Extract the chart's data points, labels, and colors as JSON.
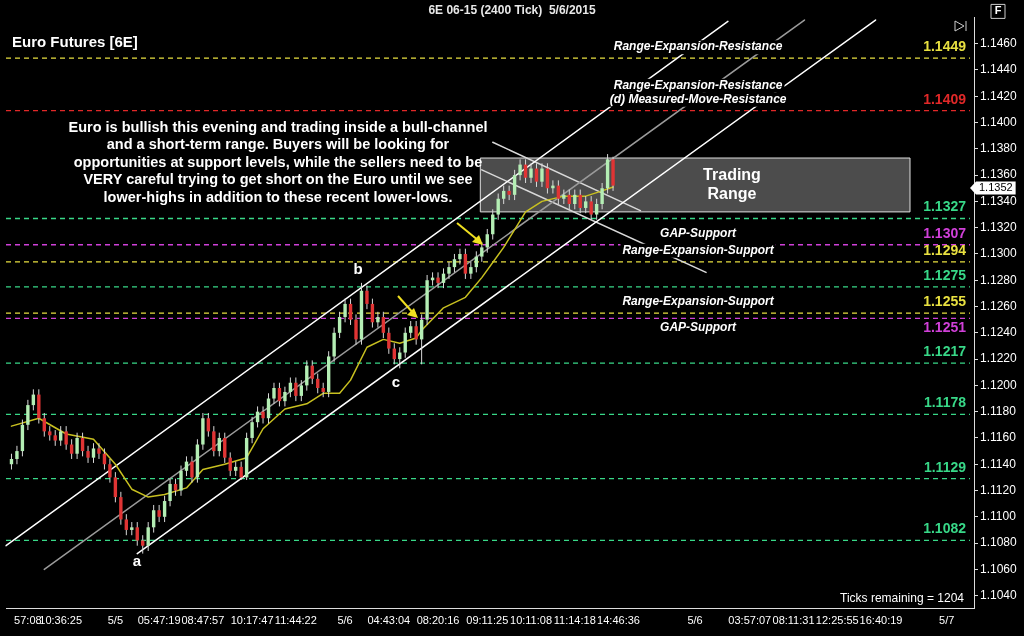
{
  "chart_data": {
    "type": "candlestick",
    "title": "6E 06-15 (2400 Tick)  5/6/2015",
    "subtitle": "Euro Futures [6E]",
    "categories": [
      null,
      null,
      null,
      null,
      "57:08",
      null,
      null,
      null,
      null,
      null,
      "10:36:25",
      null,
      null,
      null,
      null,
      null,
      null,
      null,
      null,
      null,
      "5/5",
      null,
      null,
      null,
      null,
      null,
      null,
      null,
      "05:47:19",
      null,
      null,
      null,
      null,
      null,
      null,
      null,
      "08:47:57",
      null,
      null,
      null,
      null,
      null,
      null,
      null,
      null,
      "10:17:47",
      null,
      null,
      null,
      null,
      null,
      null,
      null,
      "11:44:22",
      null,
      null,
      null,
      null,
      null,
      null,
      null,
      null,
      "5/6",
      null,
      null,
      null,
      null,
      null,
      null,
      null,
      "04:43:04",
      null,
      null,
      null,
      null,
      null,
      null,
      null,
      null,
      "08:20:16",
      null,
      null,
      null,
      null,
      null,
      null,
      null,
      null,
      "09:11:25",
      null,
      null,
      null,
      null,
      null,
      null,
      null,
      "10:11:08",
      null,
      null,
      null,
      null,
      null,
      null,
      null,
      "11:14:18",
      null,
      null,
      null,
      null,
      null,
      null,
      null,
      "14:46:36",
      null,
      null,
      null,
      null,
      null,
      null,
      null,
      null,
      null,
      null,
      null,
      null,
      null,
      "5/6",
      null,
      null,
      null,
      null,
      null,
      null,
      null,
      null,
      null,
      "03:57:07",
      null,
      null,
      null,
      null,
      null,
      null,
      null,
      "08:11:31",
      null,
      null,
      null,
      null,
      null,
      null,
      null,
      "12:25:55",
      null,
      null,
      null,
      null,
      null,
      null,
      null,
      "16:40:19",
      null,
      null,
      null,
      null,
      null,
      null,
      null,
      null,
      null,
      null,
      null,
      "5/7",
      null,
      null,
      null,
      null,
      null
    ],
    "ohlc": [
      null,
      [
        1.114,
        1.1148,
        1.1136,
        1.1144
      ],
      [
        1.1144,
        1.1154,
        1.114,
        1.115
      ],
      [
        1.115,
        1.1174,
        1.1146,
        1.117
      ],
      [
        1.117,
        1.1189,
        1.1166,
        1.1185
      ],
      [
        1.1185,
        1.1197,
        1.1181,
        1.1193
      ],
      [
        1.1193,
        1.1197,
        1.1171,
        1.1175
      ],
      [
        1.1175,
        1.1179,
        1.1161,
        1.1165
      ],
      [
        1.1165,
        1.1169,
        1.1158,
        1.1162
      ],
      [
        1.1162,
        1.1166,
        1.1154,
        1.1158
      ],
      [
        1.1158,
        1.1169,
        1.1154,
        1.1165
      ],
      [
        1.1165,
        1.1169,
        1.1151,
        1.1155
      ],
      [
        1.1155,
        1.1159,
        1.1144,
        1.1148
      ],
      [
        1.1148,
        1.1164,
        1.1144,
        1.116
      ],
      [
        1.116,
        1.1164,
        1.1146,
        1.115
      ],
      [
        1.115,
        1.1154,
        1.1141,
        1.1145
      ],
      [
        1.1145,
        1.1156,
        1.1141,
        1.1152
      ],
      [
        1.1152,
        1.1156,
        1.1144,
        1.1148
      ],
      [
        1.1148,
        1.1152,
        1.1136,
        1.114
      ],
      [
        1.114,
        1.1144,
        1.1126,
        1.113
      ],
      [
        1.113,
        1.1134,
        1.1111,
        1.1115
      ],
      [
        1.1115,
        1.1119,
        1.1094,
        1.1098
      ],
      [
        1.1098,
        1.1102,
        1.1086,
        1.109
      ],
      [
        1.109,
        1.1096,
        1.1086,
        1.1092
      ],
      [
        1.1092,
        1.1096,
        1.1078,
        1.1082
      ],
      [
        1.1082,
        1.1086,
        1.1072,
        1.1078
      ],
      [
        1.1078,
        1.1096,
        1.1074,
        1.1092
      ],
      [
        1.1092,
        1.1109,
        1.1088,
        1.1105
      ],
      [
        1.1105,
        1.1109,
        1.1096,
        1.11
      ],
      [
        1.11,
        1.1116,
        1.1096,
        1.1112
      ],
      [
        1.1112,
        1.1129,
        1.1108,
        1.1125
      ],
      [
        1.1125,
        1.1129,
        1.1116,
        1.112
      ],
      [
        1.112,
        1.1139,
        1.1116,
        1.1135
      ],
      [
        1.1135,
        1.1146,
        1.1131,
        1.1142
      ],
      [
        1.1142,
        1.1146,
        1.1126,
        1.113
      ],
      [
        1.113,
        1.1159,
        1.1126,
        1.1155
      ],
      [
        1.1155,
        1.1179,
        1.1151,
        1.1175
      ],
      [
        1.1175,
        1.1179,
        1.1161,
        1.1165
      ],
      [
        1.1165,
        1.1169,
        1.1146,
        1.115
      ],
      [
        1.115,
        1.1164,
        1.1146,
        1.116
      ],
      [
        1.116,
        1.1164,
        1.1141,
        1.1145
      ],
      [
        1.1145,
        1.1149,
        1.1131,
        1.1135
      ],
      [
        1.1135,
        1.1142,
        1.1131,
        1.1138
      ],
      [
        1.1138,
        1.1142,
        1.1128,
        1.113
      ],
      [
        1.113,
        1.1164,
        1.1128,
        1.116
      ],
      [
        1.116,
        1.1176,
        1.1156,
        1.1172
      ],
      [
        1.1172,
        1.1184,
        1.1168,
        1.118
      ],
      [
        1.118,
        1.1184,
        1.1171,
        1.1175
      ],
      [
        1.1175,
        1.1194,
        1.1171,
        1.119
      ],
      [
        1.119,
        1.1202,
        1.1186,
        1.1198
      ],
      [
        1.1198,
        1.1202,
        1.1184,
        1.1188
      ],
      [
        1.1188,
        1.1199,
        1.1184,
        1.1195
      ],
      [
        1.1195,
        1.1206,
        1.1191,
        1.1202
      ],
      [
        1.1202,
        1.1206,
        1.1188,
        1.1192
      ],
      [
        1.1192,
        1.1204,
        1.1188,
        1.12
      ],
      [
        1.12,
        1.1219,
        1.1196,
        1.1215
      ],
      [
        1.1215,
        1.1219,
        1.1201,
        1.1205
      ],
      [
        1.1205,
        1.1209,
        1.1194,
        1.1198
      ],
      [
        1.1198,
        1.1202,
        1.1191,
        1.1195
      ],
      [
        1.1195,
        1.1226,
        1.1191,
        1.1222
      ],
      [
        1.1222,
        1.1244,
        1.1218,
        1.124
      ],
      [
        1.124,
        1.1256,
        1.1236,
        1.1252
      ],
      [
        1.1252,
        1.1266,
        1.1248,
        1.1262
      ],
      [
        1.1262,
        1.1266,
        1.1246,
        1.125
      ],
      [
        1.125,
        1.1254,
        1.1231,
        1.1235
      ],
      [
        1.1235,
        1.1278,
        1.1231,
        1.1272
      ],
      [
        1.1272,
        1.1276,
        1.1258,
        1.1262
      ],
      [
        1.1262,
        1.1266,
        1.1244,
        1.1248
      ],
      [
        1.1248,
        1.1256,
        1.1244,
        1.1252
      ],
      [
        1.1252,
        1.1256,
        1.1236,
        1.124
      ],
      [
        1.124,
        1.1244,
        1.1224,
        1.1228
      ],
      [
        1.1228,
        1.1232,
        1.1216,
        1.122
      ],
      [
        1.122,
        1.1229,
        1.1213,
        1.1225
      ],
      [
        1.1225,
        1.1244,
        1.1221,
        1.124
      ],
      [
        1.124,
        1.1249,
        1.1236,
        1.1245
      ],
      [
        1.1245,
        1.1249,
        1.1231,
        1.1235
      ],
      [
        1.1235,
        1.1254,
        1.1216,
        1.125
      ],
      [
        1.125,
        1.1284,
        1.1246,
        1.128
      ],
      [
        1.128,
        1.1286,
        1.1276,
        1.1282
      ],
      [
        1.1282,
        1.1286,
        1.1274,
        1.1278
      ],
      [
        1.1278,
        1.1289,
        1.1274,
        1.1285
      ],
      [
        1.1285,
        1.1294,
        1.1281,
        1.129
      ],
      [
        1.129,
        1.13,
        1.1286,
        1.1296
      ],
      [
        1.1296,
        1.1304,
        1.1292,
        1.13
      ],
      [
        1.13,
        1.1304,
        1.1281,
        1.1285
      ],
      [
        1.1285,
        1.1294,
        1.1281,
        1.129
      ],
      [
        1.129,
        1.1302,
        1.1286,
        1.1298
      ],
      [
        1.1298,
        1.1309,
        1.1294,
        1.1305
      ],
      [
        1.1305,
        1.1319,
        1.1301,
        1.1315
      ],
      [
        1.1315,
        1.1334,
        1.1311,
        1.133
      ],
      [
        1.133,
        1.1346,
        1.1326,
        1.1342
      ],
      [
        1.1342,
        1.1352,
        1.1338,
        1.1348
      ],
      [
        1.1348,
        1.1352,
        1.1341,
        1.1345
      ],
      [
        1.1345,
        1.1364,
        1.1341,
        1.136
      ],
      [
        1.136,
        1.1372,
        1.1356,
        1.1368
      ],
      [
        1.1368,
        1.1372,
        1.1354,
        1.1358
      ],
      [
        1.1358,
        1.1369,
        1.1354,
        1.1365
      ],
      [
        1.1365,
        1.1369,
        1.1351,
        1.1355
      ],
      [
        1.1355,
        1.1369,
        1.1351,
        1.1365
      ],
      [
        1.1365,
        1.1369,
        1.1346,
        1.135
      ],
      [
        1.135,
        1.1356,
        1.1346,
        1.1352
      ],
      [
        1.1352,
        1.1356,
        1.1338,
        1.1342
      ],
      [
        1.1342,
        1.1349,
        1.1338,
        1.1345
      ],
      [
        1.1345,
        1.1349,
        1.1334,
        1.1338
      ],
      [
        1.1338,
        1.1349,
        1.1334,
        1.1345
      ],
      [
        1.1345,
        1.1349,
        1.1331,
        1.1335
      ],
      [
        1.1335,
        1.1344,
        1.1331,
        1.134
      ],
      [
        1.134,
        1.1344,
        1.1326,
        1.133
      ],
      [
        1.133,
        1.1342,
        1.1326,
        1.1338
      ],
      [
        1.1338,
        1.1354,
        1.1334,
        1.135
      ],
      [
        1.135,
        1.1376,
        1.1346,
        1.1372
      ],
      [
        1.1372,
        1.1374,
        1.1348,
        1.1352
      ],
      null,
      null,
      null,
      null,
      null,
      null,
      null,
      null,
      null,
      null,
      null,
      null,
      null,
      null,
      null,
      null,
      null,
      null,
      null,
      null,
      null,
      null,
      null,
      null,
      null,
      null,
      null,
      null,
      null,
      null,
      null,
      null,
      null,
      null,
      null,
      null,
      null,
      null,
      null,
      null,
      null,
      null,
      null,
      null,
      null,
      null,
      null,
      null,
      null,
      null,
      null,
      null,
      null,
      null,
      null,
      null,
      null,
      null,
      null,
      null,
      null,
      null,
      null,
      null,
      null,
      null
    ],
    "series": [
      {
        "type": "line",
        "color": "#c8c020",
        "values": [
          null,
          1.1169,
          null,
          null,
          null,
          null,
          1.1175,
          null,
          null,
          null,
          null,
          1.1163,
          null,
          null,
          null,
          null,
          1.1159,
          null,
          null,
          null,
          1.114,
          null,
          null,
          1.1121,
          null,
          null,
          1.1115,
          null,
          null,
          1.1117,
          null,
          null,
          null,
          1.1122,
          null,
          null,
          1.1136,
          null,
          null,
          null,
          1.114,
          null,
          null,
          null,
          1.1145,
          null,
          null,
          1.1167,
          null,
          null,
          null,
          1.1182,
          null,
          null,
          null,
          1.1186,
          null,
          null,
          1.1194,
          null,
          null,
          1.1194,
          null,
          1.1204,
          null,
          null,
          1.1229,
          null,
          null,
          1.1235,
          null,
          null,
          1.1232,
          null,
          null,
          1.1236,
          1.1242,
          null,
          null,
          null,
          1.1259,
          null,
          null,
          null,
          1.1267,
          null,
          null,
          1.1282,
          null,
          null,
          null,
          1.1305,
          null,
          null,
          null,
          1.1332,
          null,
          null,
          1.134,
          null,
          null,
          null,
          1.1344,
          null,
          null,
          null,
          1.1344,
          null,
          null,
          1.1348,
          null,
          1.1351,
          null,
          null,
          null,
          null,
          null,
          null,
          null,
          null,
          null,
          null,
          null,
          null,
          null,
          null,
          null,
          null,
          null,
          null,
          null,
          null,
          null,
          null,
          null,
          null,
          null,
          null,
          null,
          null,
          null,
          null,
          null,
          null,
          null,
          null,
          null,
          null,
          null,
          null,
          null,
          null,
          null,
          null,
          null,
          null,
          null,
          null,
          null,
          null,
          null,
          null,
          null,
          null,
          null,
          null,
          null,
          null,
          null,
          null,
          null,
          null,
          null,
          null,
          null,
          null,
          null,
          null
        ]
      },
      {
        "type": "line",
        "color": "#ffffff",
        "values": [
          1.1078,
          null,
          null,
          null,
          null,
          null,
          null,
          null,
          null,
          null,
          null,
          null,
          null,
          null,
          null,
          null,
          null,
          null,
          null,
          null,
          null,
          null,
          null,
          null,
          null,
          null,
          null,
          null,
          null,
          null,
          null,
          null,
          null,
          null,
          null,
          null,
          null,
          null,
          null,
          null,
          null,
          null,
          null,
          null,
          null,
          null,
          null,
          null,
          null,
          null,
          null,
          null,
          null,
          null,
          null,
          null,
          null,
          null,
          null,
          null,
          null,
          null,
          null,
          null,
          null,
          null,
          null,
          null,
          null,
          null,
          null,
          null,
          null,
          null,
          null,
          null,
          null,
          null,
          null,
          null,
          null,
          null,
          null,
          null,
          null,
          null,
          null,
          null,
          null,
          null,
          null,
          null,
          null,
          null,
          null,
          null,
          null,
          null,
          null,
          null,
          null,
          null,
          null,
          null,
          null,
          null,
          null,
          null,
          null,
          null,
          null,
          null,
          null,
          null,
          null,
          null,
          null,
          null,
          null,
          null,
          null,
          null,
          null,
          null,
          null,
          null,
          null,
          null,
          null,
          null,
          null,
          null,
          1.1477,
          null,
          null,
          null,
          null,
          null,
          null,
          null,
          null,
          null,
          null,
          null,
          null,
          null,
          null,
          null,
          null,
          null,
          null,
          null,
          null,
          null,
          null,
          null,
          null,
          null,
          null,
          null,
          null,
          null,
          null,
          null,
          null,
          null,
          null,
          null,
          null,
          null,
          null,
          null,
          null,
          null,
          null,
          null,
          null,
          null
        ]
      },
      {
        "type": "line",
        "color": "#ffffff",
        "values": [
          null,
          null,
          null,
          null,
          null,
          null,
          null,
          null,
          null,
          null,
          null,
          null,
          null,
          null,
          null,
          null,
          null,
          null,
          null,
          null,
          null,
          null,
          null,
          null,
          1.1072,
          null,
          null,
          null,
          null,
          null,
          null,
          null,
          null,
          null,
          null,
          null,
          null,
          null,
          null,
          null,
          null,
          null,
          null,
          null,
          null,
          null,
          null,
          null,
          null,
          null,
          null,
          null,
          null,
          null,
          null,
          null,
          null,
          null,
          null,
          null,
          null,
          null,
          null,
          null,
          null,
          null,
          null,
          null,
          null,
          null,
          null,
          null,
          null,
          null,
          null,
          null,
          null,
          null,
          null,
          null,
          null,
          null,
          null,
          null,
          null,
          null,
          null,
          null,
          null,
          null,
          null,
          null,
          null,
          null,
          null,
          null,
          null,
          null,
          null,
          null,
          null,
          null,
          null,
          null,
          null,
          null,
          null,
          null,
          null,
          null,
          null,
          null,
          null,
          null,
          null,
          null,
          null,
          null,
          null,
          null,
          null,
          null,
          null,
          null,
          null,
          null,
          null,
          null,
          null,
          null,
          null,
          null,
          null,
          null,
          null,
          null,
          null,
          null,
          null,
          null,
          null,
          null,
          null,
          null,
          null,
          null,
          null,
          null,
          null,
          null,
          null,
          null,
          null,
          null,
          null,
          null,
          null,
          null,
          null,
          1.1478,
          null,
          null,
          null,
          null,
          null,
          null,
          null,
          null,
          null,
          null,
          null,
          null,
          null,
          null,
          null,
          null,
          null,
          null
        ]
      },
      {
        "type": "line",
        "color": "#9a9a9a",
        "values": [
          null,
          null,
          null,
          null,
          null,
          null,
          null,
          1.106,
          null,
          null,
          null,
          null,
          null,
          null,
          null,
          null,
          null,
          null,
          null,
          null,
          null,
          null,
          null,
          null,
          null,
          null,
          null,
          null,
          null,
          null,
          null,
          null,
          null,
          null,
          null,
          null,
          null,
          null,
          null,
          null,
          null,
          null,
          null,
          null,
          null,
          null,
          null,
          null,
          null,
          null,
          null,
          null,
          null,
          null,
          null,
          null,
          null,
          null,
          null,
          null,
          null,
          null,
          null,
          null,
          null,
          null,
          null,
          null,
          null,
          null,
          null,
          null,
          null,
          null,
          null,
          null,
          null,
          null,
          null,
          null,
          null,
          null,
          null,
          null,
          null,
          null,
          null,
          null,
          null,
          null,
          null,
          null,
          null,
          null,
          null,
          null,
          null,
          null,
          null,
          null,
          null,
          null,
          null,
          null,
          null,
          null,
          null,
          null,
          null,
          null,
          null,
          null,
          null,
          null,
          null,
          null,
          null,
          null,
          null,
          null,
          null,
          null,
          null,
          null,
          null,
          null,
          null,
          null,
          null,
          null,
          null,
          null,
          null,
          null,
          null,
          null,
          null,
          null,
          null,
          null,
          null,
          null,
          null,
          null,
          null,
          null,
          1.1478,
          null,
          null,
          null,
          null,
          null,
          null,
          null,
          null,
          null,
          null,
          null,
          null,
          null,
          null,
          null,
          null,
          null,
          null,
          null,
          null,
          null,
          null,
          null,
          null,
          null,
          null,
          null,
          null,
          null,
          null,
          null
        ]
      },
      {
        "type": "line",
        "color": "#d8d8d8",
        "values": [
          null,
          null,
          null,
          null,
          null,
          null,
          null,
          null,
          null,
          null,
          null,
          null,
          null,
          null,
          null,
          null,
          null,
          null,
          null,
          null,
          null,
          null,
          null,
          null,
          null,
          null,
          null,
          null,
          null,
          null,
          null,
          null,
          null,
          null,
          null,
          null,
          null,
          null,
          null,
          null,
          null,
          null,
          null,
          null,
          null,
          null,
          null,
          null,
          null,
          null,
          null,
          null,
          null,
          null,
          null,
          null,
          null,
          null,
          null,
          null,
          null,
          null,
          null,
          null,
          null,
          null,
          null,
          null,
          null,
          null,
          null,
          null,
          null,
          null,
          null,
          null,
          null,
          null,
          null,
          null,
          null,
          null,
          null,
          null,
          null,
          null,
          null,
          null,
          null,
          1.1385,
          null,
          null,
          null,
          null,
          null,
          null,
          null,
          null,
          null,
          null,
          null,
          null,
          null,
          null,
          null,
          null,
          null,
          null,
          null,
          null,
          null,
          null,
          null,
          null,
          null,
          null,
          1.1333,
          null,
          null,
          null,
          null,
          null,
          null,
          null,
          null,
          null,
          null,
          null,
          null,
          null,
          null,
          null,
          null,
          null,
          null,
          null,
          null,
          null,
          null,
          null,
          null,
          null,
          null,
          null,
          null,
          null,
          null,
          null,
          null,
          null,
          null,
          null,
          null,
          null,
          null,
          null,
          null,
          null,
          null,
          null,
          null,
          null,
          null,
          null,
          null,
          null,
          null,
          null,
          null,
          null,
          null,
          null,
          null,
          null,
          null,
          null,
          null,
          null
        ]
      },
      {
        "type": "line",
        "color": "#d8d8d8",
        "values": [
          null,
          null,
          null,
          null,
          null,
          null,
          null,
          null,
          null,
          null,
          null,
          null,
          null,
          null,
          null,
          null,
          null,
          null,
          null,
          null,
          null,
          null,
          null,
          null,
          null,
          null,
          null,
          null,
          null,
          null,
          null,
          null,
          null,
          null,
          null,
          null,
          null,
          null,
          null,
          null,
          null,
          null,
          null,
          null,
          null,
          null,
          null,
          null,
          null,
          null,
          null,
          null,
          null,
          null,
          null,
          null,
          null,
          null,
          null,
          null,
          null,
          null,
          null,
          null,
          null,
          null,
          null,
          null,
          null,
          null,
          null,
          null,
          null,
          null,
          null,
          null,
          null,
          null,
          null,
          null,
          null,
          null,
          null,
          null,
          null,
          null,
          null,
          1.1364,
          null,
          null,
          null,
          null,
          null,
          null,
          null,
          null,
          null,
          null,
          null,
          null,
          null,
          null,
          null,
          null,
          null,
          null,
          null,
          null,
          null,
          null,
          null,
          null,
          null,
          null,
          null,
          null,
          null,
          null,
          null,
          null,
          null,
          null,
          null,
          null,
          null,
          null,
          null,
          null,
          1.1286,
          null,
          null,
          null,
          null,
          null,
          null,
          null,
          null,
          null,
          null,
          null,
          null,
          null,
          null,
          null,
          null,
          null,
          null,
          null,
          null,
          null,
          null,
          null,
          null,
          null,
          null,
          null,
          null,
          null,
          null,
          null,
          null,
          null,
          null,
          null,
          null,
          null,
          null,
          null,
          null,
          null,
          null,
          null,
          null,
          null,
          null,
          null,
          null,
          null
        ]
      }
    ],
    "ylim": [
      1.103,
      1.148
    ],
    "yticks": [
      {
        "value": 1.104,
        "label": "1.1040"
      },
      {
        "value": 1.106,
        "label": "1.1060"
      },
      {
        "value": 1.108,
        "label": "1.1080"
      },
      {
        "value": 1.11,
        "label": "1.1100"
      },
      {
        "value": 1.112,
        "label": "1.1120"
      },
      {
        "value": 1.114,
        "label": "1.1140"
      },
      {
        "value": 1.116,
        "label": "1.1160"
      },
      {
        "value": 1.118,
        "label": "1.1180"
      },
      {
        "value": 1.12,
        "label": "1.1200"
      },
      {
        "value": 1.122,
        "label": "1.1220"
      },
      {
        "value": 1.124,
        "label": "1.1240"
      },
      {
        "value": 1.126,
        "label": "1.1260"
      },
      {
        "value": 1.128,
        "label": "1.1280"
      },
      {
        "value": 1.13,
        "label": "1.1300"
      },
      {
        "value": 1.132,
        "label": "1.1320"
      },
      {
        "value": 1.134,
        "label": "1.1340"
      },
      {
        "value": 1.136,
        "label": "1.1360"
      },
      {
        "value": 1.138,
        "label": "1.1380"
      },
      {
        "value": 1.14,
        "label": "1.1400"
      },
      {
        "value": 1.142,
        "label": "1.1420"
      },
      {
        "value": 1.144,
        "label": "1.1440"
      },
      {
        "value": 1.146,
        "label": "1.1460"
      }
    ],
    "ref_lines": [
      {
        "axis": "y",
        "value": 1.1449,
        "label": "1.1449",
        "color": "#e8e040",
        "line_style": "dashed"
      },
      {
        "axis": "y",
        "value": 1.1409,
        "label": "1.1409",
        "color": "#e02828",
        "line_style": "dashed"
      },
      {
        "axis": "y",
        "value": 1.1327,
        "label": "1.1327",
        "color": "#38d888",
        "line_style": "dashed"
      },
      {
        "axis": "y",
        "value": 1.1307,
        "label": "1.1307",
        "color": "#d040d8",
        "line_style": "dashed"
      },
      {
        "axis": "y",
        "value": 1.1294,
        "label": "1.1294",
        "color": "#e8e040",
        "line_style": "dashed"
      },
      {
        "axis": "y",
        "value": 1.1275,
        "label": "1.1275",
        "color": "#38d888",
        "line_style": "dashed"
      },
      {
        "axis": "y",
        "value": 1.1255,
        "label": "1.1255",
        "color": "#e8e040",
        "line_style": "dashed"
      },
      {
        "axis": "y",
        "value": 1.1251,
        "label": "1.1251",
        "color": "#d040d8",
        "line_style": "dashed"
      },
      {
        "axis": "y",
        "value": 1.1217,
        "label": "1.1217",
        "color": "#38d888",
        "line_style": "dashed"
      },
      {
        "axis": "y",
        "value": 1.1178,
        "label": "1.1178",
        "color": "#38d888",
        "line_style": "dashed"
      },
      {
        "axis": "y",
        "value": 1.1129,
        "label": "1.1129",
        "color": "#38d888",
        "line_style": "dashed"
      },
      {
        "axis": "y",
        "value": 1.1082,
        "label": "1.1082",
        "color": "#38d888",
        "line_style": "dashed"
      }
    ],
    "bands": [
      {
        "axis": "y",
        "from": 1.1332,
        "to": 1.1373,
        "label": "Trading Range",
        "color": "#8a8a8a"
      }
    ],
    "annotations": [
      "Euro is bullish this evening and trading inside a bull-channel and a short-term range. Buyers will be looking for opportunities at support levels, while the sellers need to be VERY careful trying to get short on the Euro until we see lower-highs in addition to these recent lower-lows.",
      "Ticks remaining = 1204",
      "F",
      "a",
      "b",
      "c",
      "1.1352",
      {
        "text": "Range-Expansion-Resistance",
        "y": 1.1449
      },
      {
        "text": "Range-Expansion-Resistance",
        "y": 1.1409
      },
      {
        "text": "(d) Measured-Move-Resistance",
        "y": 1.1409
      },
      {
        "text": "GAP-Support",
        "y": 1.1307
      },
      {
        "text": "Range-Expansion-Support",
        "y": 1.1294
      },
      {
        "text": "Range-Expansion-Support",
        "y": 1.1255
      },
      {
        "text": "GAP-Support",
        "y": 1.1251
      }
    ]
  }
}
